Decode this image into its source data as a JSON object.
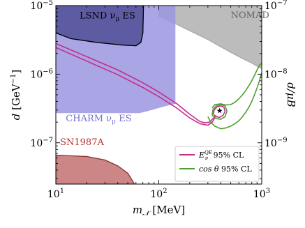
{
  "chart_data": {
    "type": "area",
    "x_scale": "log",
    "y_scale": "log",
    "xlim": [
      10,
      1000
    ],
    "ylim": [
      2.5e-08,
      1e-05
    ],
    "y2lim": [
      2.5e-10,
      1e-07
    ],
    "grid": false,
    "legend_position": "lower-right",
    "xlabel_main": "m",
    "xlabel_sub": "𝒩",
    "xlabel_unit": " [MeV]",
    "ylabel_main": "d",
    "ylabel_unit": " [GeV",
    "ylabel_exp": "−1",
    "ylabel_close": "]",
    "y2label": "d/μB",
    "x_ticks": [
      {
        "value": 10,
        "base": "10",
        "exp": "1"
      },
      {
        "value": 100,
        "base": "10",
        "exp": "2"
      },
      {
        "value": 1000,
        "base": "10",
        "exp": "3"
      }
    ],
    "y_ticks": [
      {
        "value": 1e-05,
        "base": "10",
        "exp": "−5"
      },
      {
        "value": 1e-06,
        "base": "10",
        "exp": "−6"
      },
      {
        "value": 1e-07,
        "base": "10",
        "exp": "−7"
      }
    ],
    "y2_ticks": [
      {
        "value": 1e-07,
        "base": "10",
        "exp": "−7"
      },
      {
        "value": 1e-08,
        "base": "10",
        "exp": "−8"
      },
      {
        "value": 1e-09,
        "base": "10",
        "exp": "−9"
      }
    ],
    "regions": [
      {
        "name": "NOMAD",
        "label": "NOMAD",
        "label_at": [
          500,
          6.6e-06
        ],
        "color": "#a6a6a6",
        "opacity": 0.75,
        "label_color": "#666666",
        "points": [
          [
            100,
            1e-05
          ],
          [
            1000,
            1e-05
          ],
          [
            1000,
            1.2e-06
          ],
          [
            800,
            1.45e-06
          ],
          [
            600,
            1.8e-06
          ],
          [
            400,
            2.5e-06
          ],
          [
            300,
            3.2e-06
          ],
          [
            200,
            4.3e-06
          ],
          [
            150,
            5.3e-06
          ],
          [
            100,
            7e-06
          ]
        ]
      },
      {
        "name": "CHARM",
        "label": "CHARM ν",
        "label_sub": "μ",
        "label_tail": " ES",
        "label_at": [
          12.5,
          2.05e-07
        ],
        "color": "#9b95e0",
        "opacity": 0.85,
        "label_color": "#7a70d0",
        "points": [
          [
            10,
            2.7e-07
          ],
          [
            65,
            2.7e-07
          ],
          [
            75,
            2.85e-07
          ],
          [
            92,
            3.1e-07
          ],
          [
            110,
            3.35e-07
          ],
          [
            145,
            3.7e-07
          ],
          [
            145,
            1e-05
          ],
          [
            10,
            1e-05
          ]
        ]
      },
      {
        "name": "LSND",
        "label": "LSND ν",
        "label_sub": "μ",
        "label_tail": " ES",
        "label_at": [
          17,
          6.5e-06
        ],
        "color": "#4a4890",
        "opacity": 0.8,
        "label_color": "#000000",
        "points": [
          [
            10,
            1e-05
          ],
          [
            10,
            4e-06
          ],
          [
            14,
            3.3e-06
          ],
          [
            25,
            2.9e-06
          ],
          [
            45,
            2.65e-06
          ],
          [
            60,
            2.6e-06
          ],
          [
            67,
            2.9e-06
          ],
          [
            70,
            4e-06
          ],
          [
            71,
            1e-05
          ]
        ]
      },
      {
        "name": "SN1987A",
        "label": "SN1987A",
        "label_at": [
          11,
          9.3e-08
        ],
        "color": "#c98080",
        "opacity": 0.95,
        "label_color": "#b23030",
        "points": [
          [
            10,
            2.5e-08
          ],
          [
            10,
            6.6e-08
          ],
          [
            20,
            6.3e-08
          ],
          [
            30,
            5.6e-08
          ],
          [
            40,
            4.6e-08
          ],
          [
            50,
            3.6e-08
          ],
          [
            58,
            2.5e-08
          ]
        ]
      }
    ],
    "series": [
      {
        "name": "E_QE_outer",
        "color": "#c72c8c",
        "x": [
          10,
          20,
          40,
          70,
          100,
          150,
          200,
          250,
          280,
          310,
          340,
          360
        ],
        "y": [
          2.8e-06,
          1.8e-06,
          1.15e-06,
          7.5e-07,
          5.5e-07,
          3.7e-07,
          2.6e-07,
          2.05e-07,
          1.95e-07,
          2e-07,
          2.3e-07,
          2.5e-07
        ]
      },
      {
        "name": "E_QE_inner",
        "color": "#c72c8c",
        "x": [
          10,
          20,
          40,
          70,
          100,
          150,
          200,
          250,
          300,
          330,
          350
        ],
        "y": [
          2.45e-06,
          1.55e-06,
          9.8e-07,
          6.4e-07,
          4.7e-07,
          3.2e-07,
          2.3e-07,
          1.9e-07,
          1.8e-07,
          2e-07,
          2.3e-07
        ]
      },
      {
        "name": "cos_theta_outer",
        "color": "#4f9e2f",
        "x": [
          300,
          320,
          350,
          400,
          450,
          500,
          550,
          600,
          650,
          700,
          750,
          800,
          850,
          900,
          950,
          1000
        ],
        "y": [
          2.4e-07,
          2e-07,
          1.75e-07,
          1.6e-07,
          1.65e-07,
          1.75e-07,
          1.9e-07,
          2.1e-07,
          2.4e-07,
          2.8e-07,
          3.3e-07,
          4e-07,
          5e-07,
          6.3e-07,
          8e-07,
          1.05e-06
        ]
      },
      {
        "name": "cos_theta_inner",
        "color": "#4f9e2f",
        "x": [
          330,
          350,
          400,
          450,
          500,
          550,
          600,
          650,
          700,
          750,
          800,
          850,
          900,
          950,
          1000
        ],
        "y": [
          3.2e-07,
          3.6e-07,
          3.7e-07,
          3.55e-07,
          3.6e-07,
          3.9e-07,
          4.4e-07,
          5e-07,
          5.8e-07,
          6.8e-07,
          8e-07,
          9.6e-07,
          1.15e-06,
          1.35e-06,
          1.45e-06
        ]
      },
      {
        "name": "magenta_island",
        "color": "#c72c8c",
        "x": [
          340,
          360,
          390,
          420,
          440,
          430,
          400,
          370,
          345,
          340
        ],
        "y": [
          2.6e-07,
          2.4e-07,
          2.35e-07,
          2.5e-07,
          2.85e-07,
          3.3e-07,
          3.45e-07,
          3.35e-07,
          3e-07,
          2.6e-07
        ]
      },
      {
        "name": "green_island",
        "color": "#4f9e2f",
        "x": [
          330,
          360,
          400,
          440,
          460,
          440,
          400,
          360,
          335,
          330
        ],
        "y": [
          2.5e-07,
          2.25e-07,
          2.2e-07,
          2.4e-07,
          2.9e-07,
          3.45e-07,
          3.6e-07,
          3.45e-07,
          3e-07,
          2.5e-07
        ]
      }
    ],
    "best_fit": {
      "x": 390,
      "y": 2.95e-07,
      "marker": "★"
    },
    "legend": [
      {
        "label": "E",
        "sup": "QE",
        "sub": "ν",
        "tail": " 95% CL",
        "color": "#c72c8c"
      },
      {
        "label": "cos θ",
        "sup": "",
        "sub": "",
        "tail": " 95% CL",
        "color": "#4f9e2f"
      }
    ]
  }
}
